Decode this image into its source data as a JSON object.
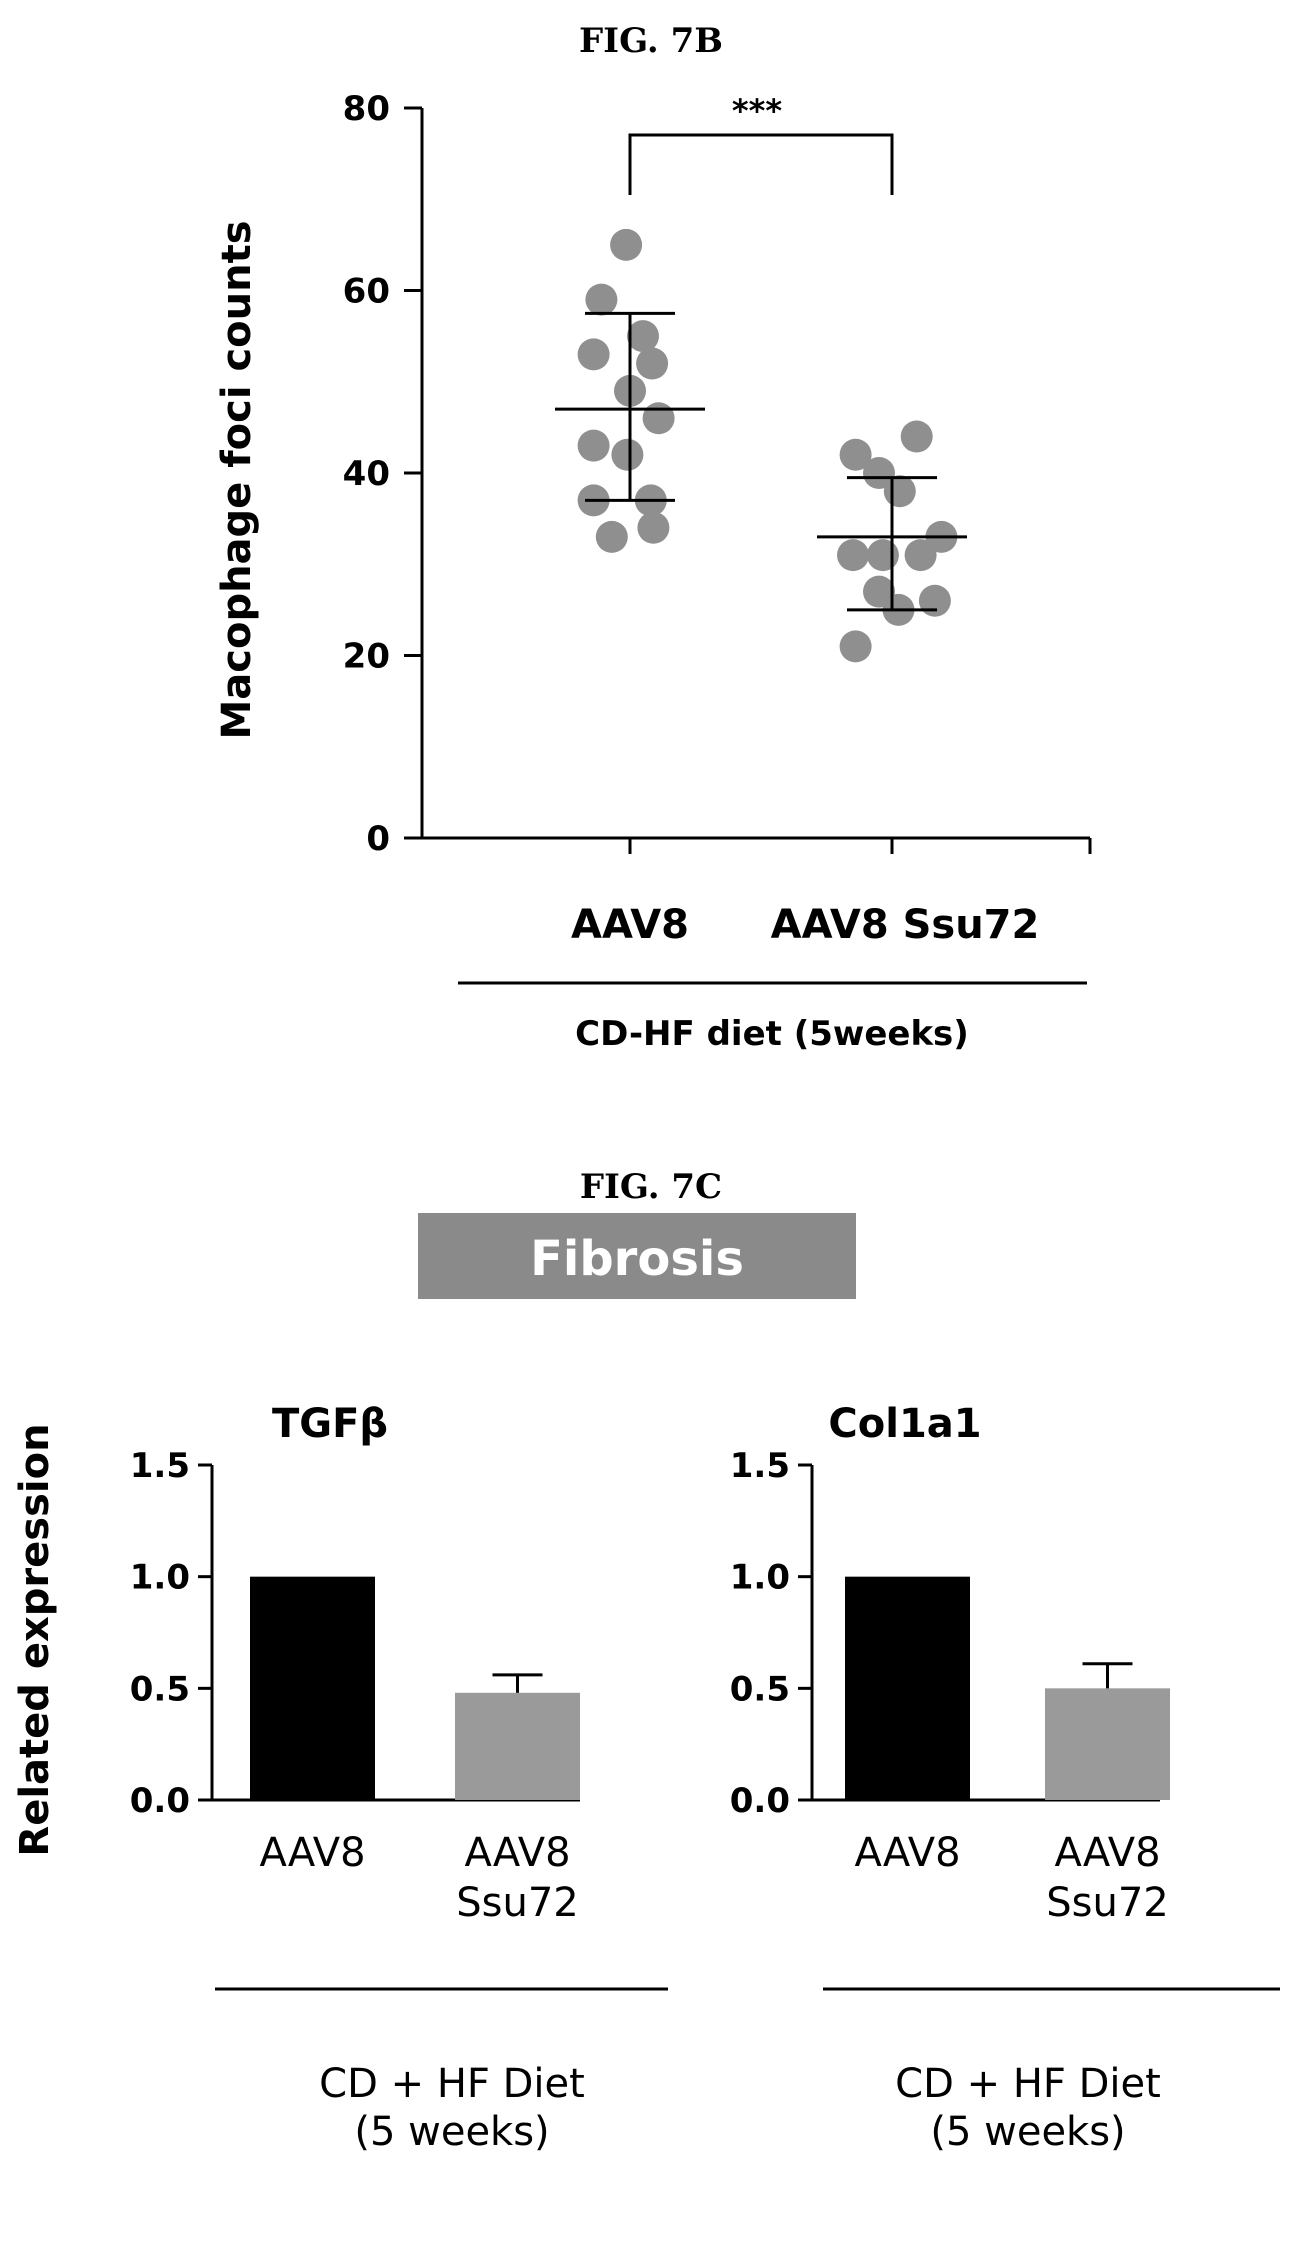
{
  "chart_data": [
    {
      "type": "scatter",
      "figure_label": "FIG. 7B",
      "ylabel": "Macophage foci counts",
      "ylim": [
        0,
        80
      ],
      "yticks": [
        0,
        20,
        40,
        60,
        80
      ],
      "categories": [
        "AAV8",
        "AAV8 Ssu72"
      ],
      "group_caption": "CD-HF diet (5weeks)",
      "significance": "***",
      "series": [
        {
          "category": "AAV8",
          "points": [
            {
              "offset": -0.03,
              "y": 65
            },
            {
              "offset": -0.22,
              "y": 59
            },
            {
              "offset": 0.1,
              "y": 55
            },
            {
              "offset": -0.28,
              "y": 53
            },
            {
              "offset": 0.17,
              "y": 52
            },
            {
              "offset": 0.0,
              "y": 49
            },
            {
              "offset": 0.22,
              "y": 46
            },
            {
              "offset": -0.28,
              "y": 43
            },
            {
              "offset": -0.02,
              "y": 42
            },
            {
              "offset": -0.28,
              "y": 37
            },
            {
              "offset": 0.16,
              "y": 37
            },
            {
              "offset": -0.14,
              "y": 33
            },
            {
              "offset": 0.18,
              "y": 34
            }
          ],
          "mean": 47,
          "sd_low": 37,
          "sd_high": 57.5
        },
        {
          "category": "AAV8 Ssu72",
          "points": [
            {
              "offset": 0.19,
              "y": 44
            },
            {
              "offset": -0.28,
              "y": 42
            },
            {
              "offset": -0.1,
              "y": 40
            },
            {
              "offset": 0.06,
              "y": 38
            },
            {
              "offset": 0.38,
              "y": 33
            },
            {
              "offset": -0.3,
              "y": 31
            },
            {
              "offset": -0.07,
              "y": 31
            },
            {
              "offset": 0.22,
              "y": 31
            },
            {
              "offset": -0.1,
              "y": 27
            },
            {
              "offset": 0.33,
              "y": 26
            },
            {
              "offset": 0.05,
              "y": 25
            },
            {
              "offset": -0.28,
              "y": 21
            }
          ],
          "mean": 33,
          "sd_low": 25,
          "sd_high": 39.5
        }
      ]
    },
    {
      "type": "bar",
      "title": "TGFβ",
      "ylabel": "Related expression",
      "ylim": [
        0,
        1.5
      ],
      "yticks": [
        "0.0",
        "0.5",
        "1.0",
        "1.5"
      ],
      "categories": [
        "AAV8",
        "AAV8\nSsu72"
      ],
      "values": [
        1.0,
        0.48
      ],
      "errors": [
        0,
        0.08
      ],
      "colors": [
        "#000000",
        "#9a9a9a"
      ],
      "group_caption": "CD + HF Diet\n(5 weeks)"
    },
    {
      "type": "bar",
      "title": "Col1a1",
      "ylabel": "",
      "ylim": [
        0,
        1.5
      ],
      "yticks": [
        "0.0",
        "0.5",
        "1.0",
        "1.5"
      ],
      "categories": [
        "AAV8",
        "AAV8\nSsu72"
      ],
      "values": [
        1.0,
        0.5
      ],
      "errors": [
        0,
        0.11
      ],
      "colors": [
        "#000000",
        "#9a9a9a"
      ],
      "group_caption": "CD + HF Diet\n(5 weeks)"
    }
  ],
  "fig7c": {
    "figure_label": "FIG. 7C",
    "banner_text": "Fibrosis",
    "banner_color": "#8a8a8a"
  }
}
